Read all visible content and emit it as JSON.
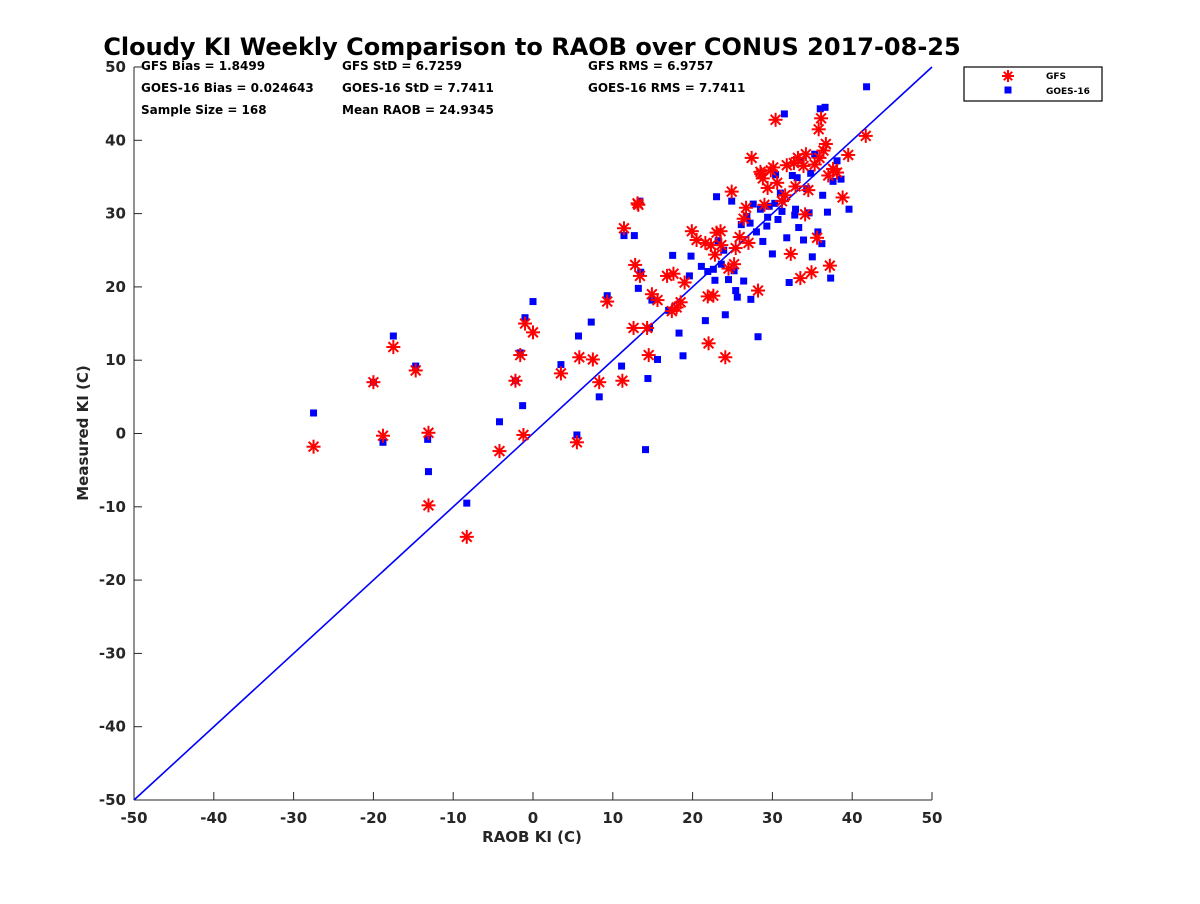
{
  "chart_data": {
    "type": "scatter",
    "title": "Cloudy KI Weekly Comparison to RAOB over CONUS 2017-08-25",
    "xlabel": "RAOB KI (C)",
    "ylabel": "Measured KI (C)",
    "xlim": [
      -50,
      50
    ],
    "ylim": [
      -50,
      50
    ],
    "xticks": [
      -50,
      -40,
      -30,
      -20,
      -10,
      0,
      10,
      20,
      30,
      40,
      50
    ],
    "yticks": [
      -50,
      -40,
      -30,
      -20,
      -10,
      0,
      10,
      20,
      30,
      40,
      50
    ],
    "grid": false,
    "legend_position": "top-right outside",
    "reference_line": {
      "x": [
        -50,
        50
      ],
      "y": [
        -50,
        50
      ],
      "color": "#0000ff"
    },
    "stats": [
      "GFS Bias = 1.8499",
      "GFS StD = 6.7259",
      "GFS RMS = 6.9757",
      "GOES-16 Bias = 0.024643",
      "GOES-16 StD = 7.7411",
      "GOES-16 RMS = 7.7411",
      "Sample Size = 168",
      "Mean RAOB = 24.9345"
    ],
    "series": [
      {
        "name": "GFS",
        "marker": "asterisk",
        "color": "#ff0000",
        "points": [
          [
            -27.5,
            -1.8
          ],
          [
            -20,
            7
          ],
          [
            -18.8,
            -0.3
          ],
          [
            -17.5,
            11.8
          ],
          [
            -14.7,
            8.6
          ],
          [
            -13.1,
            0.1
          ],
          [
            -13.1,
            -9.8
          ],
          [
            -8.3,
            -14.1
          ],
          [
            -4.2,
            -2.4
          ],
          [
            -2.2,
            7.2
          ],
          [
            -1.6,
            10.7
          ],
          [
            -1.2,
            -0.2
          ],
          [
            -1,
            15
          ],
          [
            0,
            13.8
          ],
          [
            3.5,
            8.2
          ],
          [
            5.5,
            -1.2
          ],
          [
            5.8,
            10.4
          ],
          [
            7.5,
            10.1
          ],
          [
            8.3,
            7
          ],
          [
            9.3,
            18
          ],
          [
            11.2,
            7.2
          ],
          [
            11.4,
            28
          ],
          [
            12.6,
            14.4
          ],
          [
            12.8,
            23
          ],
          [
            13.1,
            31.4
          ],
          [
            13.2,
            31.2
          ],
          [
            13.4,
            21.5
          ],
          [
            14.3,
            14.4
          ],
          [
            14.5,
            10.7
          ],
          [
            14.9,
            19
          ],
          [
            15.6,
            18.2
          ],
          [
            16.8,
            21.5
          ],
          [
            17.4,
            16.7
          ],
          [
            17.6,
            21.8
          ],
          [
            18,
            17.2
          ],
          [
            18.5,
            17.9
          ],
          [
            19,
            20.6
          ],
          [
            19.9,
            27.6
          ],
          [
            20.5,
            26.4
          ],
          [
            21.6,
            26
          ],
          [
            21.9,
            18.7
          ],
          [
            22,
            12.3
          ],
          [
            22.3,
            25.7
          ],
          [
            22.6,
            18.8
          ],
          [
            22.8,
            24.4
          ],
          [
            23,
            27.4
          ],
          [
            23.5,
            27.6
          ],
          [
            23.6,
            25.7
          ],
          [
            24.1,
            10.4
          ],
          [
            24.5,
            22.5
          ],
          [
            24.9,
            33
          ],
          [
            25.2,
            23.1
          ],
          [
            25.4,
            25.3
          ],
          [
            25.9,
            26.8
          ],
          [
            26.4,
            29.3
          ],
          [
            26.7,
            30.8
          ],
          [
            27,
            26
          ],
          [
            27.4,
            37.6
          ],
          [
            28.2,
            19.5
          ],
          [
            28.5,
            35.7
          ],
          [
            28.8,
            34.8
          ],
          [
            29,
            31.2
          ],
          [
            29.4,
            33.5
          ],
          [
            29.8,
            35.9
          ],
          [
            30.4,
            42.8
          ],
          [
            30.6,
            34.2
          ],
          [
            31.2,
            31.7
          ],
          [
            31.6,
            32.5
          ],
          [
            31.8,
            36.6
          ],
          [
            32.3,
            24.5
          ],
          [
            32.7,
            36.9
          ],
          [
            33.2,
            37.6
          ],
          [
            33.5,
            21.2
          ],
          [
            33.9,
            36.5
          ],
          [
            34.2,
            38.1
          ],
          [
            34.5,
            33.2
          ],
          [
            34.9,
            22
          ],
          [
            35.3,
            36.7
          ],
          [
            35.6,
            26.7
          ],
          [
            35.8,
            41.5
          ],
          [
            36.1,
            43
          ],
          [
            36.4,
            38.6
          ],
          [
            36.7,
            39.5
          ],
          [
            37,
            35.2
          ],
          [
            37.2,
            22.9
          ],
          [
            37.6,
            36.1
          ],
          [
            38.1,
            35.6
          ],
          [
            38.8,
            32.2
          ],
          [
            39.5,
            38
          ],
          [
            41.7,
            40.6
          ],
          [
            32.9,
            33.7
          ],
          [
            34.1,
            29.9
          ],
          [
            30.1,
            36.3
          ],
          [
            28.6,
            35.4
          ],
          [
            35.9,
            37.6
          ]
        ]
      },
      {
        "name": "GOES-16",
        "marker": "square",
        "color": "#0000ff",
        "points": [
          [
            -27.5,
            2.8
          ],
          [
            -20,
            7
          ],
          [
            -18.8,
            -1.2
          ],
          [
            -17.5,
            13.3
          ],
          [
            -14.7,
            9.2
          ],
          [
            -13.2,
            -0.8
          ],
          [
            -13.1,
            -5.2
          ],
          [
            -8.3,
            -9.5
          ],
          [
            -4.2,
            1.6
          ],
          [
            -2.2,
            7.2
          ],
          [
            -1.6,
            11
          ],
          [
            -1.3,
            3.8
          ],
          [
            -1,
            15.8
          ],
          [
            0,
            18
          ],
          [
            3.5,
            9.4
          ],
          [
            5.5,
            -0.2
          ],
          [
            5.7,
            13.3
          ],
          [
            7.3,
            15.2
          ],
          [
            8.3,
            5
          ],
          [
            9.3,
            18.8
          ],
          [
            11.4,
            27
          ],
          [
            11.1,
            9.2
          ],
          [
            12.7,
            27
          ],
          [
            13.2,
            19.8
          ],
          [
            13.4,
            31.7
          ],
          [
            13.5,
            22
          ],
          [
            14.1,
            -2.2
          ],
          [
            14.4,
            7.5
          ],
          [
            14.6,
            14.4
          ],
          [
            14.9,
            18.2
          ],
          [
            15.6,
            10.1
          ],
          [
            17,
            16.8
          ],
          [
            17.5,
            24.3
          ],
          [
            18.3,
            13.7
          ],
          [
            18.8,
            10.6
          ],
          [
            19.6,
            21.5
          ],
          [
            19.8,
            24.2
          ],
          [
            21.1,
            22.8
          ],
          [
            21.6,
            15.4
          ],
          [
            21.9,
            22.1
          ],
          [
            22.6,
            22.4
          ],
          [
            22.8,
            20.9
          ],
          [
            23,
            32.3
          ],
          [
            23.2,
            26.3
          ],
          [
            23.6,
            23.1
          ],
          [
            23.9,
            25
          ],
          [
            24.1,
            16.2
          ],
          [
            24.5,
            21
          ],
          [
            24.9,
            31.7
          ],
          [
            25.2,
            22.2
          ],
          [
            25.4,
            19.5
          ],
          [
            25.6,
            18.6
          ],
          [
            26.1,
            28.5
          ],
          [
            26.4,
            20.8
          ],
          [
            26.8,
            29.6
          ],
          [
            27.3,
            18.3
          ],
          [
            27.6,
            31.3
          ],
          [
            28,
            27.5
          ],
          [
            28.2,
            13.2
          ],
          [
            28.5,
            30.6
          ],
          [
            28.8,
            26.2
          ],
          [
            29.3,
            28.3
          ],
          [
            29.6,
            31
          ],
          [
            30,
            24.5
          ],
          [
            30.4,
            35.3
          ],
          [
            30.7,
            29.2
          ],
          [
            31.2,
            30.3
          ],
          [
            31.5,
            43.6
          ],
          [
            31.8,
            26.7
          ],
          [
            32.1,
            20.6
          ],
          [
            32.5,
            35.2
          ],
          [
            32.9,
            30.6
          ],
          [
            33.3,
            28.1
          ],
          [
            33.6,
            37.2
          ],
          [
            33.9,
            26.4
          ],
          [
            34.3,
            33.4
          ],
          [
            34.6,
            30.1
          ],
          [
            35,
            24.1
          ],
          [
            35.3,
            38.1
          ],
          [
            35.7,
            27.5
          ],
          [
            36,
            44.3
          ],
          [
            36.3,
            32.5
          ],
          [
            36.6,
            44.5
          ],
          [
            36.9,
            30.2
          ],
          [
            37.3,
            21.2
          ],
          [
            37.6,
            34.4
          ],
          [
            38.1,
            37.2
          ],
          [
            38.6,
            34.7
          ],
          [
            39.6,
            30.6
          ],
          [
            41.8,
            47.3
          ],
          [
            29.4,
            29.5
          ],
          [
            31,
            32.8
          ],
          [
            33.1,
            34.9
          ],
          [
            34.8,
            35.5
          ],
          [
            36.2,
            25.9
          ],
          [
            27.2,
            28.7
          ],
          [
            30.3,
            31.4
          ],
          [
            32.8,
            29.8
          ]
        ]
      }
    ]
  }
}
